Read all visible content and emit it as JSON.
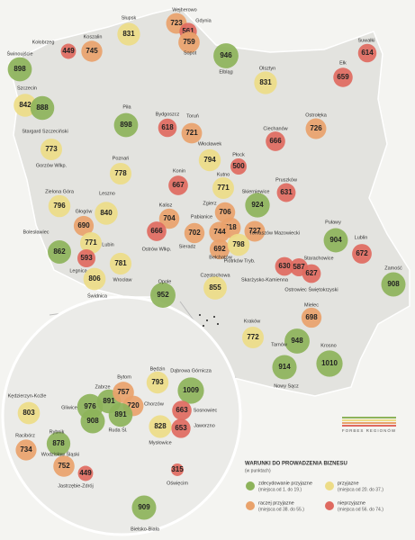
{
  "legend": {
    "title": "WARUNKI DO PROWADZENIA BIZNESU",
    "unit": "(w punktach)",
    "items": [
      {
        "label": "zdecydowanie przyjazne",
        "range": "(miejsca od 1. do 19.)",
        "color": "#8db35a"
      },
      {
        "label": "przyjazne",
        "range": "(miejsca od 20. do 37.)",
        "color": "#eddc87"
      },
      {
        "label": "raczej przyjazne",
        "range": "(miejsca od 38. do 55.)",
        "color": "#e9a26b"
      },
      {
        "label": "nieprzyjazne",
        "range": "(miejsca od 56. do 74.)",
        "color": "#df6a60"
      }
    ]
  },
  "brand": "FORBES REGIONÓW",
  "cities": [
    {
      "name": "Wejherowo",
      "value": 723,
      "color": "#e9a26b"
    },
    {
      "name": "Gdynia",
      "value": 561,
      "color": "#df6a60"
    },
    {
      "name": "Sopot",
      "value": 759,
      "color": "#e9a26b"
    },
    {
      "name": "Słupsk",
      "value": 831,
      "color": "#eddc87"
    },
    {
      "name": "Koszalin",
      "value": 745,
      "color": "#e9a26b"
    },
    {
      "name": "Kołobrzeg",
      "value": 449,
      "color": "#df6a60"
    },
    {
      "name": "Świnoujście",
      "value": 898,
      "color": "#8db35a"
    },
    {
      "name": "Szczecin",
      "value": 842,
      "color": "#eddc87"
    },
    {
      "name": "Stargard Szczeciński",
      "value": 888,
      "color": "#8db35a"
    },
    {
      "name": "Elbląg",
      "value": 946,
      "color": "#8db35a"
    },
    {
      "name": "Olsztyn",
      "value": 831,
      "color": "#eddc87"
    },
    {
      "name": "Suwałki",
      "value": 614,
      "color": "#df6a60"
    },
    {
      "name": "Ełk",
      "value": 659,
      "color": "#df6a60"
    },
    {
      "name": "Piła",
      "value": 898,
      "color": "#8db35a"
    },
    {
      "name": "Bydgoszcz",
      "value": 618,
      "color": "#df6a60"
    },
    {
      "name": "Toruń",
      "value": 721,
      "color": "#e9a26b"
    },
    {
      "name": "Ostrołęka",
      "value": 726,
      "color": "#e9a26b"
    },
    {
      "name": "Ciechanów",
      "value": 666,
      "color": "#df6a60"
    },
    {
      "name": "Włocławek",
      "value": 794,
      "color": "#eddc87"
    },
    {
      "name": "Płock",
      "value": 500,
      "color": "#df6a60"
    },
    {
      "name": "Gorzów Wlkp.",
      "value": 773,
      "color": "#eddc87"
    },
    {
      "name": "Poznań",
      "value": 778,
      "color": "#eddc87"
    },
    {
      "name": "Konin",
      "value": 667,
      "color": "#df6a60"
    },
    {
      "name": "Kutno",
      "value": 771,
      "color": "#eddc87"
    },
    {
      "name": "Pruszków",
      "value": 631,
      "color": "#df6a60"
    },
    {
      "name": "Zielona Góra",
      "value": 796,
      "color": "#eddc87"
    },
    {
      "name": "Leszno",
      "value": 840,
      "color": "#eddc87"
    },
    {
      "name": "Głogów",
      "value": 690,
      "color": "#e9a26b"
    },
    {
      "name": "Lubin",
      "value": 771,
      "color": "#eddc87"
    },
    {
      "name": "Bolesławiec",
      "value": 862,
      "color": "#8db35a"
    },
    {
      "name": "Legnica",
      "value": 593,
      "color": "#df6a60"
    },
    {
      "name": "Świdnica",
      "value": 806,
      "color": "#eddc87"
    },
    {
      "name": "Wrocław",
      "value": 781,
      "color": "#eddc87"
    },
    {
      "name": "Skierniewice",
      "value": 924,
      "color": "#8db35a"
    },
    {
      "name": "Kalisz",
      "value": 704,
      "color": "#e9a26b"
    },
    {
      "name": "Zgierz",
      "value": 706,
      "color": "#e9a26b"
    },
    {
      "value": 718,
      "color": "#e9a26b"
    },
    {
      "name": "Pabianice",
      "value": 744,
      "color": "#e9a26b"
    },
    {
      "name": "Tomaszów Mazowiecki",
      "value": 727,
      "color": "#e9a26b"
    },
    {
      "name": "Ostrów Wlkp.",
      "value": 666,
      "color": "#df6a60"
    },
    {
      "name": "Sieradz",
      "value": 702,
      "color": "#e9a26b"
    },
    {
      "name": "Bełchatów",
      "value": 692,
      "color": "#e9a26b"
    },
    {
      "name": "Piotrków Tryb.",
      "value": 798,
      "color": "#eddc87"
    },
    {
      "name": "Puławy",
      "value": 904,
      "color": "#8db35a"
    },
    {
      "name": "Lublin",
      "value": 672,
      "color": "#df6a60"
    },
    {
      "name": "Skarżysko-Kamienna",
      "value": 630,
      "color": "#df6a60"
    },
    {
      "name": "Starachowice",
      "value": 587,
      "color": "#df6a60"
    },
    {
      "name": "Ostrowiec Świętokrzyski",
      "value": 627,
      "color": "#df6a60"
    },
    {
      "name": "Zamość",
      "value": 908,
      "color": "#8db35a"
    },
    {
      "name": "Częstochowa",
      "value": 855,
      "color": "#eddc87"
    },
    {
      "name": "Opole",
      "value": 952,
      "color": "#8db35a"
    },
    {
      "name": "Mielec",
      "value": 698,
      "color": "#e9a26b"
    },
    {
      "name": "Kraków",
      "value": 772,
      "color": "#eddc87"
    },
    {
      "name": "Tarnów",
      "value": 948,
      "color": "#8db35a"
    },
    {
      "name": "Krosno",
      "value": 1010,
      "color": "#8db35a"
    },
    {
      "name": "Nowy Sącz",
      "value": 914,
      "color": "#8db35a"
    },
    {
      "name": "Kędzierzyn-Koźle",
      "value": 803,
      "color": "#eddc87"
    },
    {
      "name": "Racibórz",
      "value": 734,
      "color": "#e9a26b"
    },
    {
      "name": "Rybnik",
      "value": 878,
      "color": "#8db35a"
    },
    {
      "name": "Gliwice",
      "value": 976,
      "color": "#8db35a"
    },
    {
      "name": "Zabrze",
      "value": 891,
      "color": "#8db35a"
    },
    {
      "name": "Bytom",
      "value": 757,
      "color": "#e9a26b"
    },
    {
      "name": "Chorzów",
      "value": 720,
      "color": "#e9a26b"
    },
    {
      "name": "Ruda Śl.",
      "value": 891,
      "color": "#8db35a"
    },
    {
      "value": 908,
      "color": "#8db35a"
    },
    {
      "name": "Będzin",
      "value": 793,
      "color": "#eddc87"
    },
    {
      "name": "Dąbrowa Górnicza",
      "value": 1009,
      "color": "#8db35a"
    },
    {
      "name": "Sosnowiec",
      "value": 663,
      "color": "#df6a60"
    },
    {
      "name": "Jaworzno",
      "value": 653,
      "color": "#df6a60"
    },
    {
      "name": "Mysłowice",
      "value": 828,
      "color": "#eddc87"
    },
    {
      "name": "Wodzisław Śląski",
      "value": 752,
      "color": "#e9a26b"
    },
    {
      "name": "Jastrzębie-Zdrój",
      "value": 449,
      "color": "#df6a60"
    },
    {
      "name": "Oświęcim",
      "value": 315,
      "color": "#df6a60"
    },
    {
      "name": "Bielsko-Biała",
      "value": 909,
      "color": "#8db35a"
    }
  ]
}
